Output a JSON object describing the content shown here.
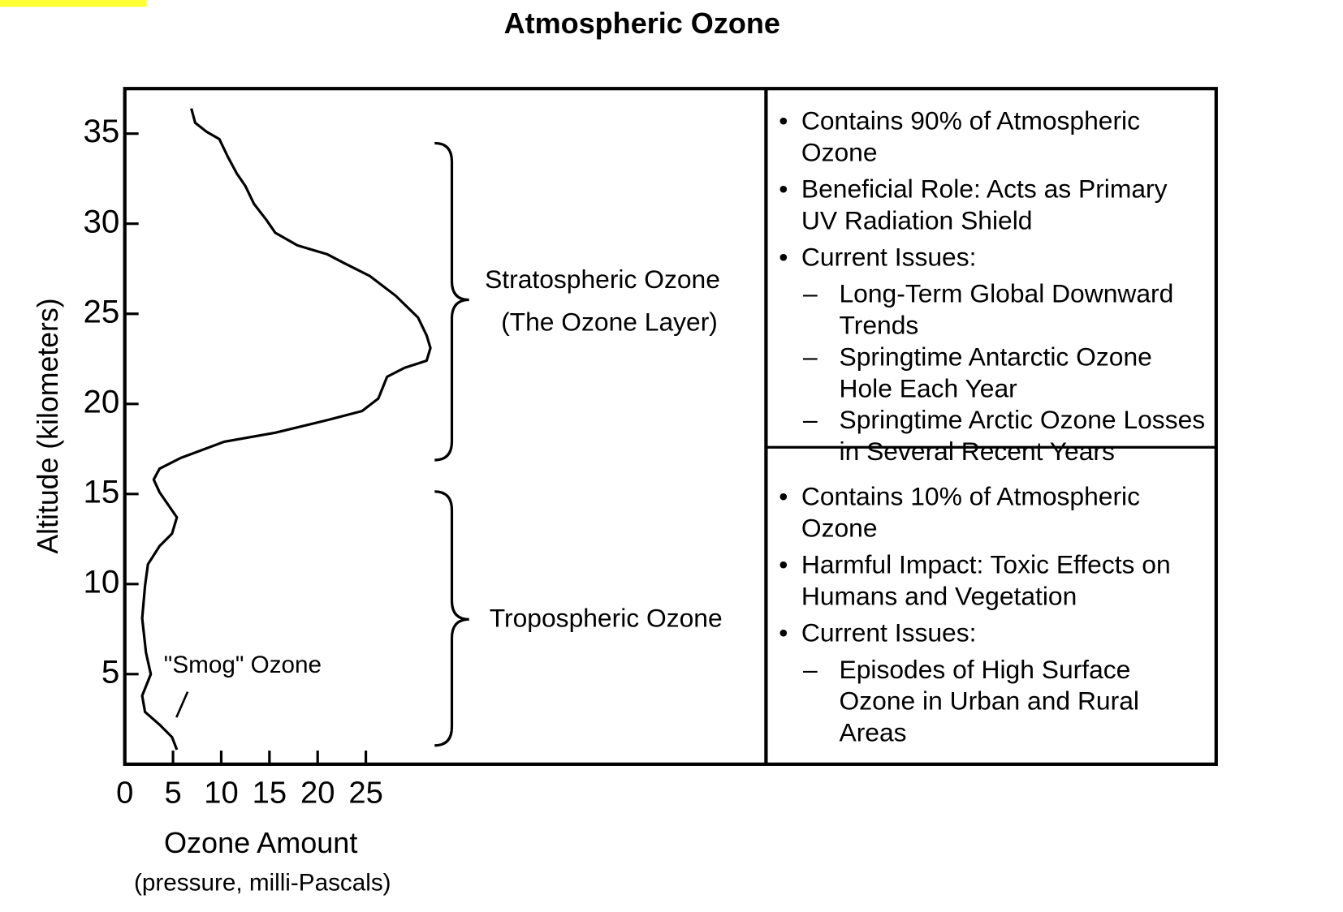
{
  "chart_data": {
    "type": "line",
    "title": "Atmospheric Ozone",
    "x_label": "Ozone Amount",
    "x_sublabel": "(pressure, milli-Pascals)",
    "y_label": "Altitude (kilometers)",
    "xlim": [
      0,
      66.5
    ],
    "ylim": [
      0,
      37.5
    ],
    "xticks": [
      0,
      5,
      10,
      15,
      20,
      25
    ],
    "yticks": [
      5,
      10,
      15,
      20,
      25,
      30,
      35
    ],
    "color": "#000000",
    "x": [
      6.9,
      7.3,
      8.5,
      9.8,
      10.7,
      11.6,
      12.5,
      13.4,
      14.7,
      15.6,
      17.9,
      21.0,
      22.8,
      25.4,
      28.1,
      30.4,
      31.3,
      31.7,
      31.3,
      29.0,
      27.2,
      26.3,
      24.6,
      21.0,
      15.6,
      10.3,
      5.8,
      3.6,
      3.0,
      3.6,
      4.5,
      5.4,
      4.9,
      3.6,
      2.4,
      2.1,
      1.8,
      2.2,
      2.7,
      1.8,
      2.1,
      3.6,
      4.9,
      5.4
    ],
    "values": [
      36.4,
      35.6,
      35.1,
      34.7,
      33.7,
      32.8,
      32.1,
      31.1,
      30.2,
      29.5,
      28.8,
      28.3,
      27.8,
      27.1,
      26.0,
      24.8,
      23.8,
      23.1,
      22.4,
      22.0,
      21.5,
      20.3,
      19.6,
      19.1,
      18.4,
      17.9,
      17.0,
      16.4,
      15.8,
      15.1,
      14.4,
      13.7,
      12.8,
      12.1,
      11.1,
      9.9,
      8.1,
      6.2,
      5.0,
      3.8,
      2.9,
      2.2,
      1.5,
      0.8
    ],
    "annotations": [
      "Stratospheric Ozone",
      "(The Ozone Layer)",
      "Tropospheric Ozone",
      "\"Smog\" Ozone"
    ],
    "panels": [
      {
        "items": [
          {
            "text": "Contains 90% of Atmospheric Ozone"
          },
          {
            "text": "Beneficial Role: Acts as Primary UV Radiation Shield"
          },
          {
            "text": "Current Issues:",
            "sub": [
              "Long-Term Global Downward Trends",
              "Springtime Antarctic Ozone Hole Each Year",
              "Springtime Arctic Ozone Losses in Several Recent Years"
            ]
          }
        ]
      },
      {
        "items": [
          {
            "text": "Contains 10% of Atmospheric Ozone"
          },
          {
            "text": "Harmful Impact: Toxic Effects on Humans and Vegetation"
          },
          {
            "text": "Current Issues:",
            "sub": [
              "Episodes of High Surface Ozone in Urban and Rural Areas"
            ]
          }
        ]
      }
    ]
  }
}
